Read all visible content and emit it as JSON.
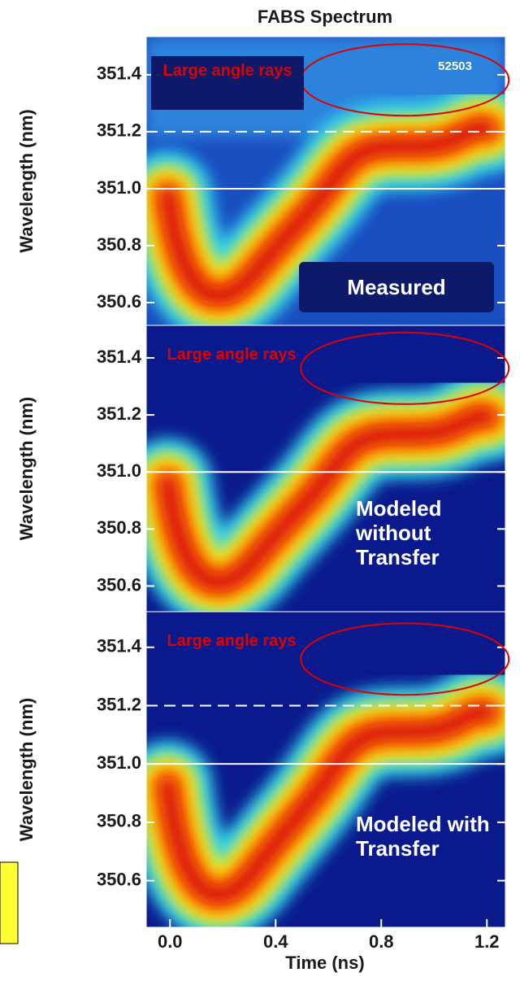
{
  "chart_data": [
    {
      "type": "heatmap",
      "title": "FABS Spectrum",
      "ylabel": "Wavelength (nm)",
      "ylim": [
        350.52,
        351.534
      ],
      "yticks": [
        350.6,
        350.8,
        {
          "value": 351,
          "label": "351.0"
        },
        351.2,
        351.4
      ],
      "hlines": [
        {
          "value": 351,
          "style": "solid"
        },
        {
          "value": 351.2,
          "style": "dashed"
        }
      ],
      "annotations": [
        "Large angle rays",
        "52503",
        "Measured"
      ]
    },
    {
      "type": "heatmap",
      "ylabel": "Wavelength (nm)",
      "ylim": [
        350.51,
        351.514
      ],
      "yticks": [
        350.6,
        350.8,
        {
          "value": 351,
          "label": "351.0"
        },
        351.2,
        351.4
      ],
      "hlines": [
        {
          "value": 351,
          "style": "solid"
        }
      ],
      "annotations": [
        "Large angle rays",
        "Modeled without Transfer"
      ]
    },
    {
      "type": "heatmap",
      "ylabel": "Wavelength (nm)",
      "xlabel": "Time (ns)",
      "ylim": [
        350.44,
        351.522
      ],
      "yticks": [
        350.6,
        350.8,
        {
          "value": 351,
          "label": "351.0"
        },
        351.2,
        351.4
      ],
      "xlim": [
        -0.09,
        1.27
      ],
      "xticks": [
        {
          "value": 0,
          "label": "0.0"
        },
        0.4,
        0.8,
        1.2
      ],
      "hlines": [
        {
          "value": 351,
          "style": "solid"
        },
        {
          "value": 351.2,
          "style": "dashed"
        }
      ],
      "annotations": [
        "Large angle rays",
        "Modeled with Transfer"
      ]
    }
  ]
}
